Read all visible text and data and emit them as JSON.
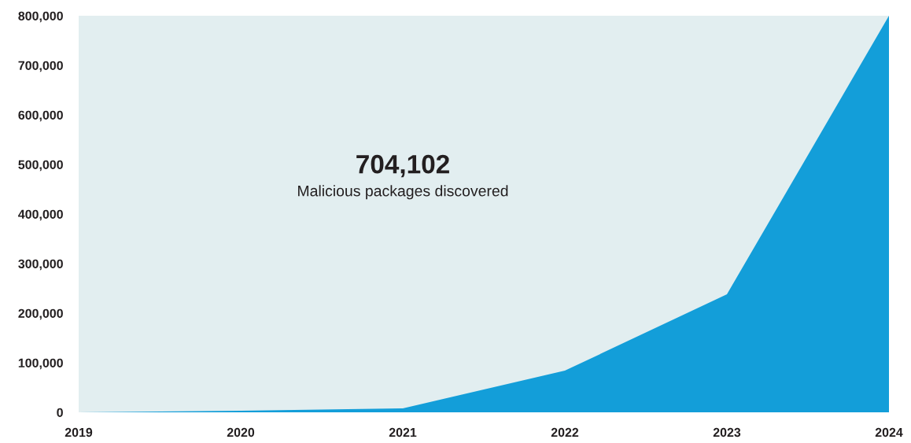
{
  "chart_data": {
    "type": "area",
    "x": [
      2019,
      2020,
      2021,
      2022,
      2023,
      2024
    ],
    "series": [
      {
        "color": "#139ed9",
        "values": [
          0,
          3000,
          8000,
          84000,
          238000,
          800000
        ]
      }
    ],
    "xlim": [
      2019,
      2024
    ],
    "xticks": [
      2019,
      2020,
      2021,
      2022,
      2023,
      2024
    ],
    "ylim": [
      0,
      800000
    ],
    "yticks": [
      {
        "value": 0,
        "label": "0"
      },
      {
        "value": 100000,
        "label": "100,000"
      },
      {
        "value": 200000,
        "label": "200,000"
      },
      {
        "value": 300000,
        "label": "300,000"
      },
      {
        "value": 400000,
        "label": "400,000"
      },
      {
        "value": 500000,
        "label": "500,000"
      },
      {
        "value": 600000,
        "label": "600,000"
      },
      {
        "value": 700000,
        "label": "700,000"
      },
      {
        "value": 800000,
        "label": "800,000"
      }
    ],
    "annotations": [
      "704,102",
      "Malicious packages discovered"
    ],
    "grid": false,
    "legend": false
  }
}
